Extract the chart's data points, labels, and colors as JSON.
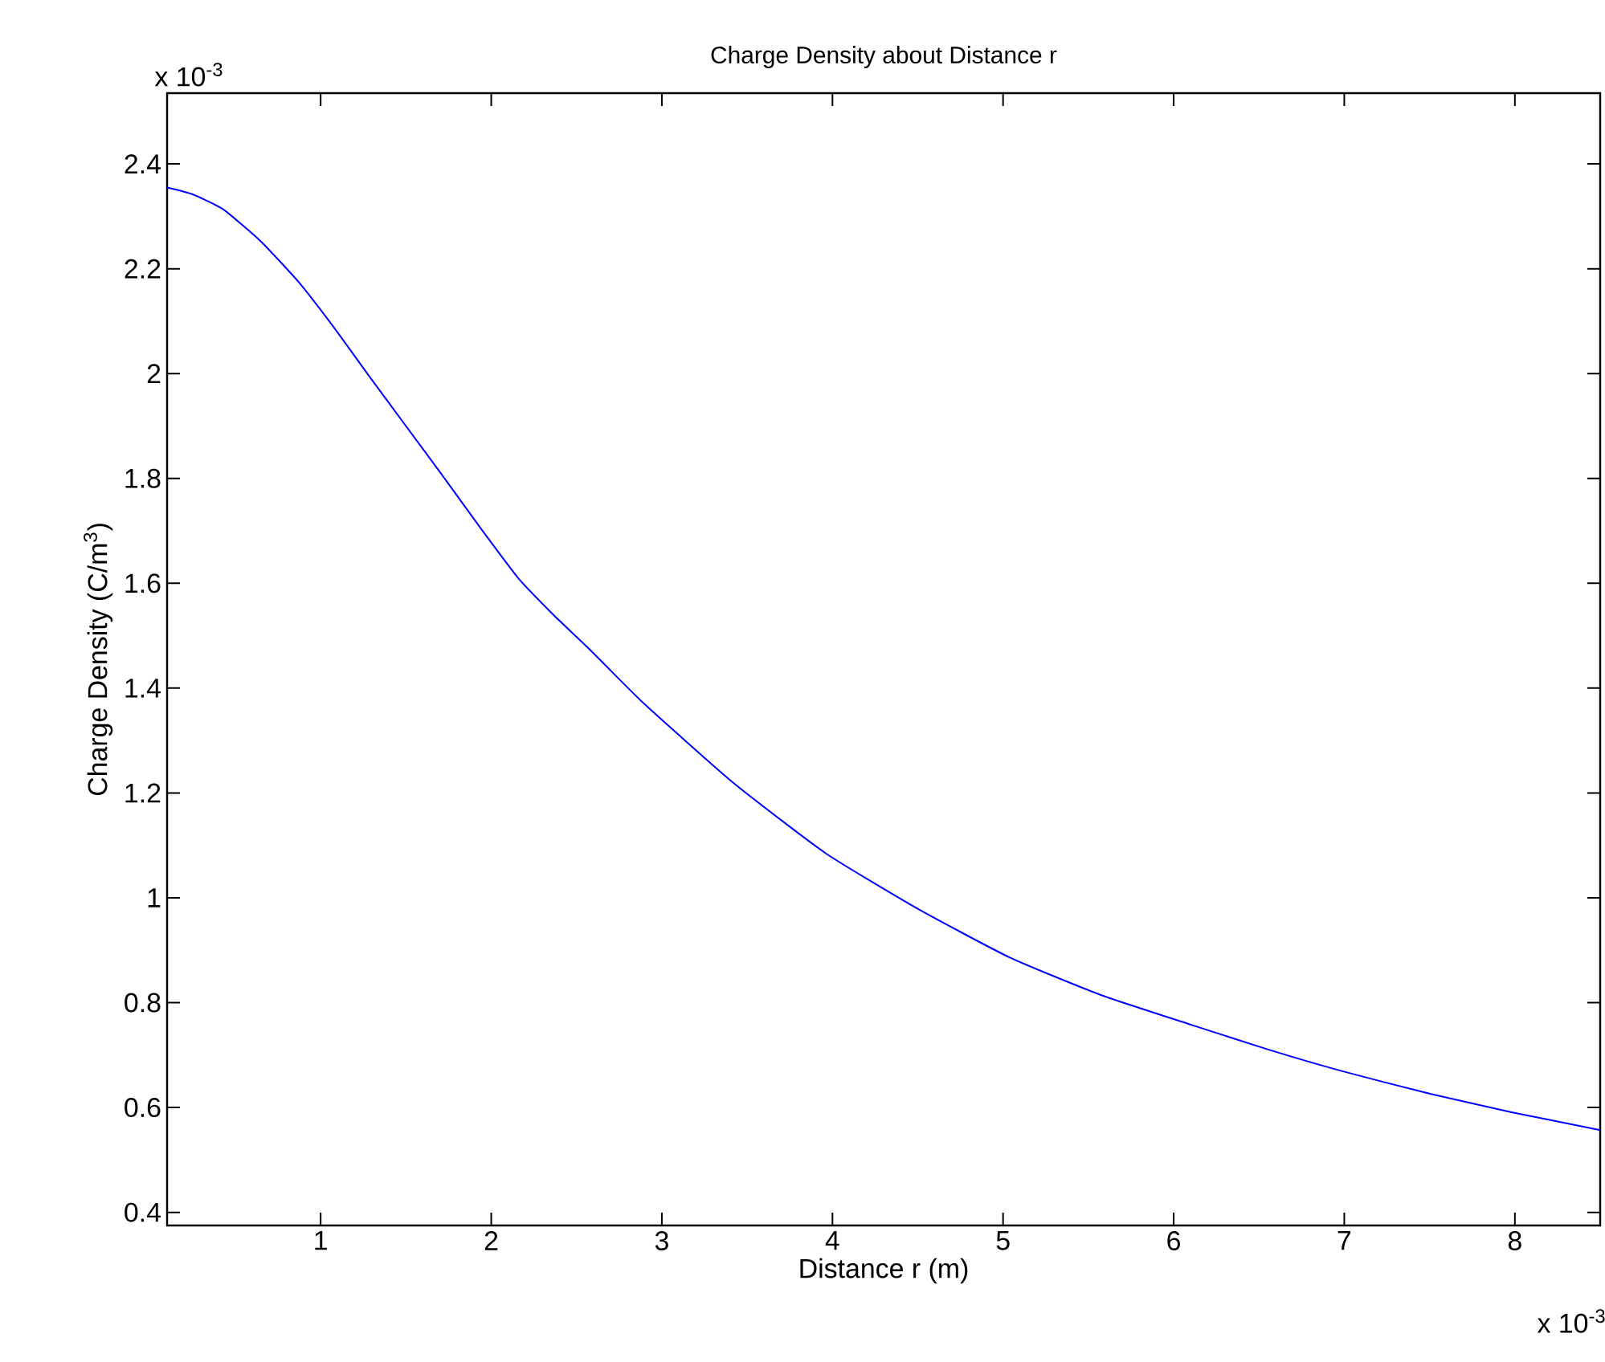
{
  "chart_data": {
    "type": "line",
    "title": "Charge Density about Distance r",
    "xlabel": "Distance r (m)",
    "ylabel": "Charge Density (C/m$^{3}$)",
    "annotations": [
      "x 10$^{-3}$",
      "x 10$^{-3}$"
    ],
    "x": [
      0.1,
      0.25,
      0.43,
      0.65,
      0.87,
      1.08,
      1.28,
      1.5,
      1.72,
      1.94,
      2.16,
      2.37,
      2.57,
      2.9,
      3.42,
      3.96,
      4.5,
      5.04,
      5.57,
      6.11,
      6.55,
      6.98,
      7.48,
      7.98,
      8.5
    ],
    "values": [
      2.355,
      2.342,
      2.313,
      2.252,
      2.175,
      2.087,
      1.997,
      1.9,
      1.803,
      1.704,
      1.609,
      1.538,
      1.476,
      1.369,
      1.219,
      1.085,
      0.979,
      0.886,
      0.815,
      0.757,
      0.711,
      0.67,
      0.628,
      0.591,
      0.557
    ],
    "color": "#0000ff",
    "xlim": [
      0.1,
      8.5
    ],
    "ylim": [
      0.375,
      2.535
    ],
    "xticks": [
      1,
      2,
      3,
      4,
      5,
      6,
      7,
      8
    ],
    "yticks": [
      0.4,
      0.6,
      0.8,
      1,
      1.2,
      1.4,
      1.6,
      1.8,
      2,
      2.2,
      2.4
    ]
  }
}
